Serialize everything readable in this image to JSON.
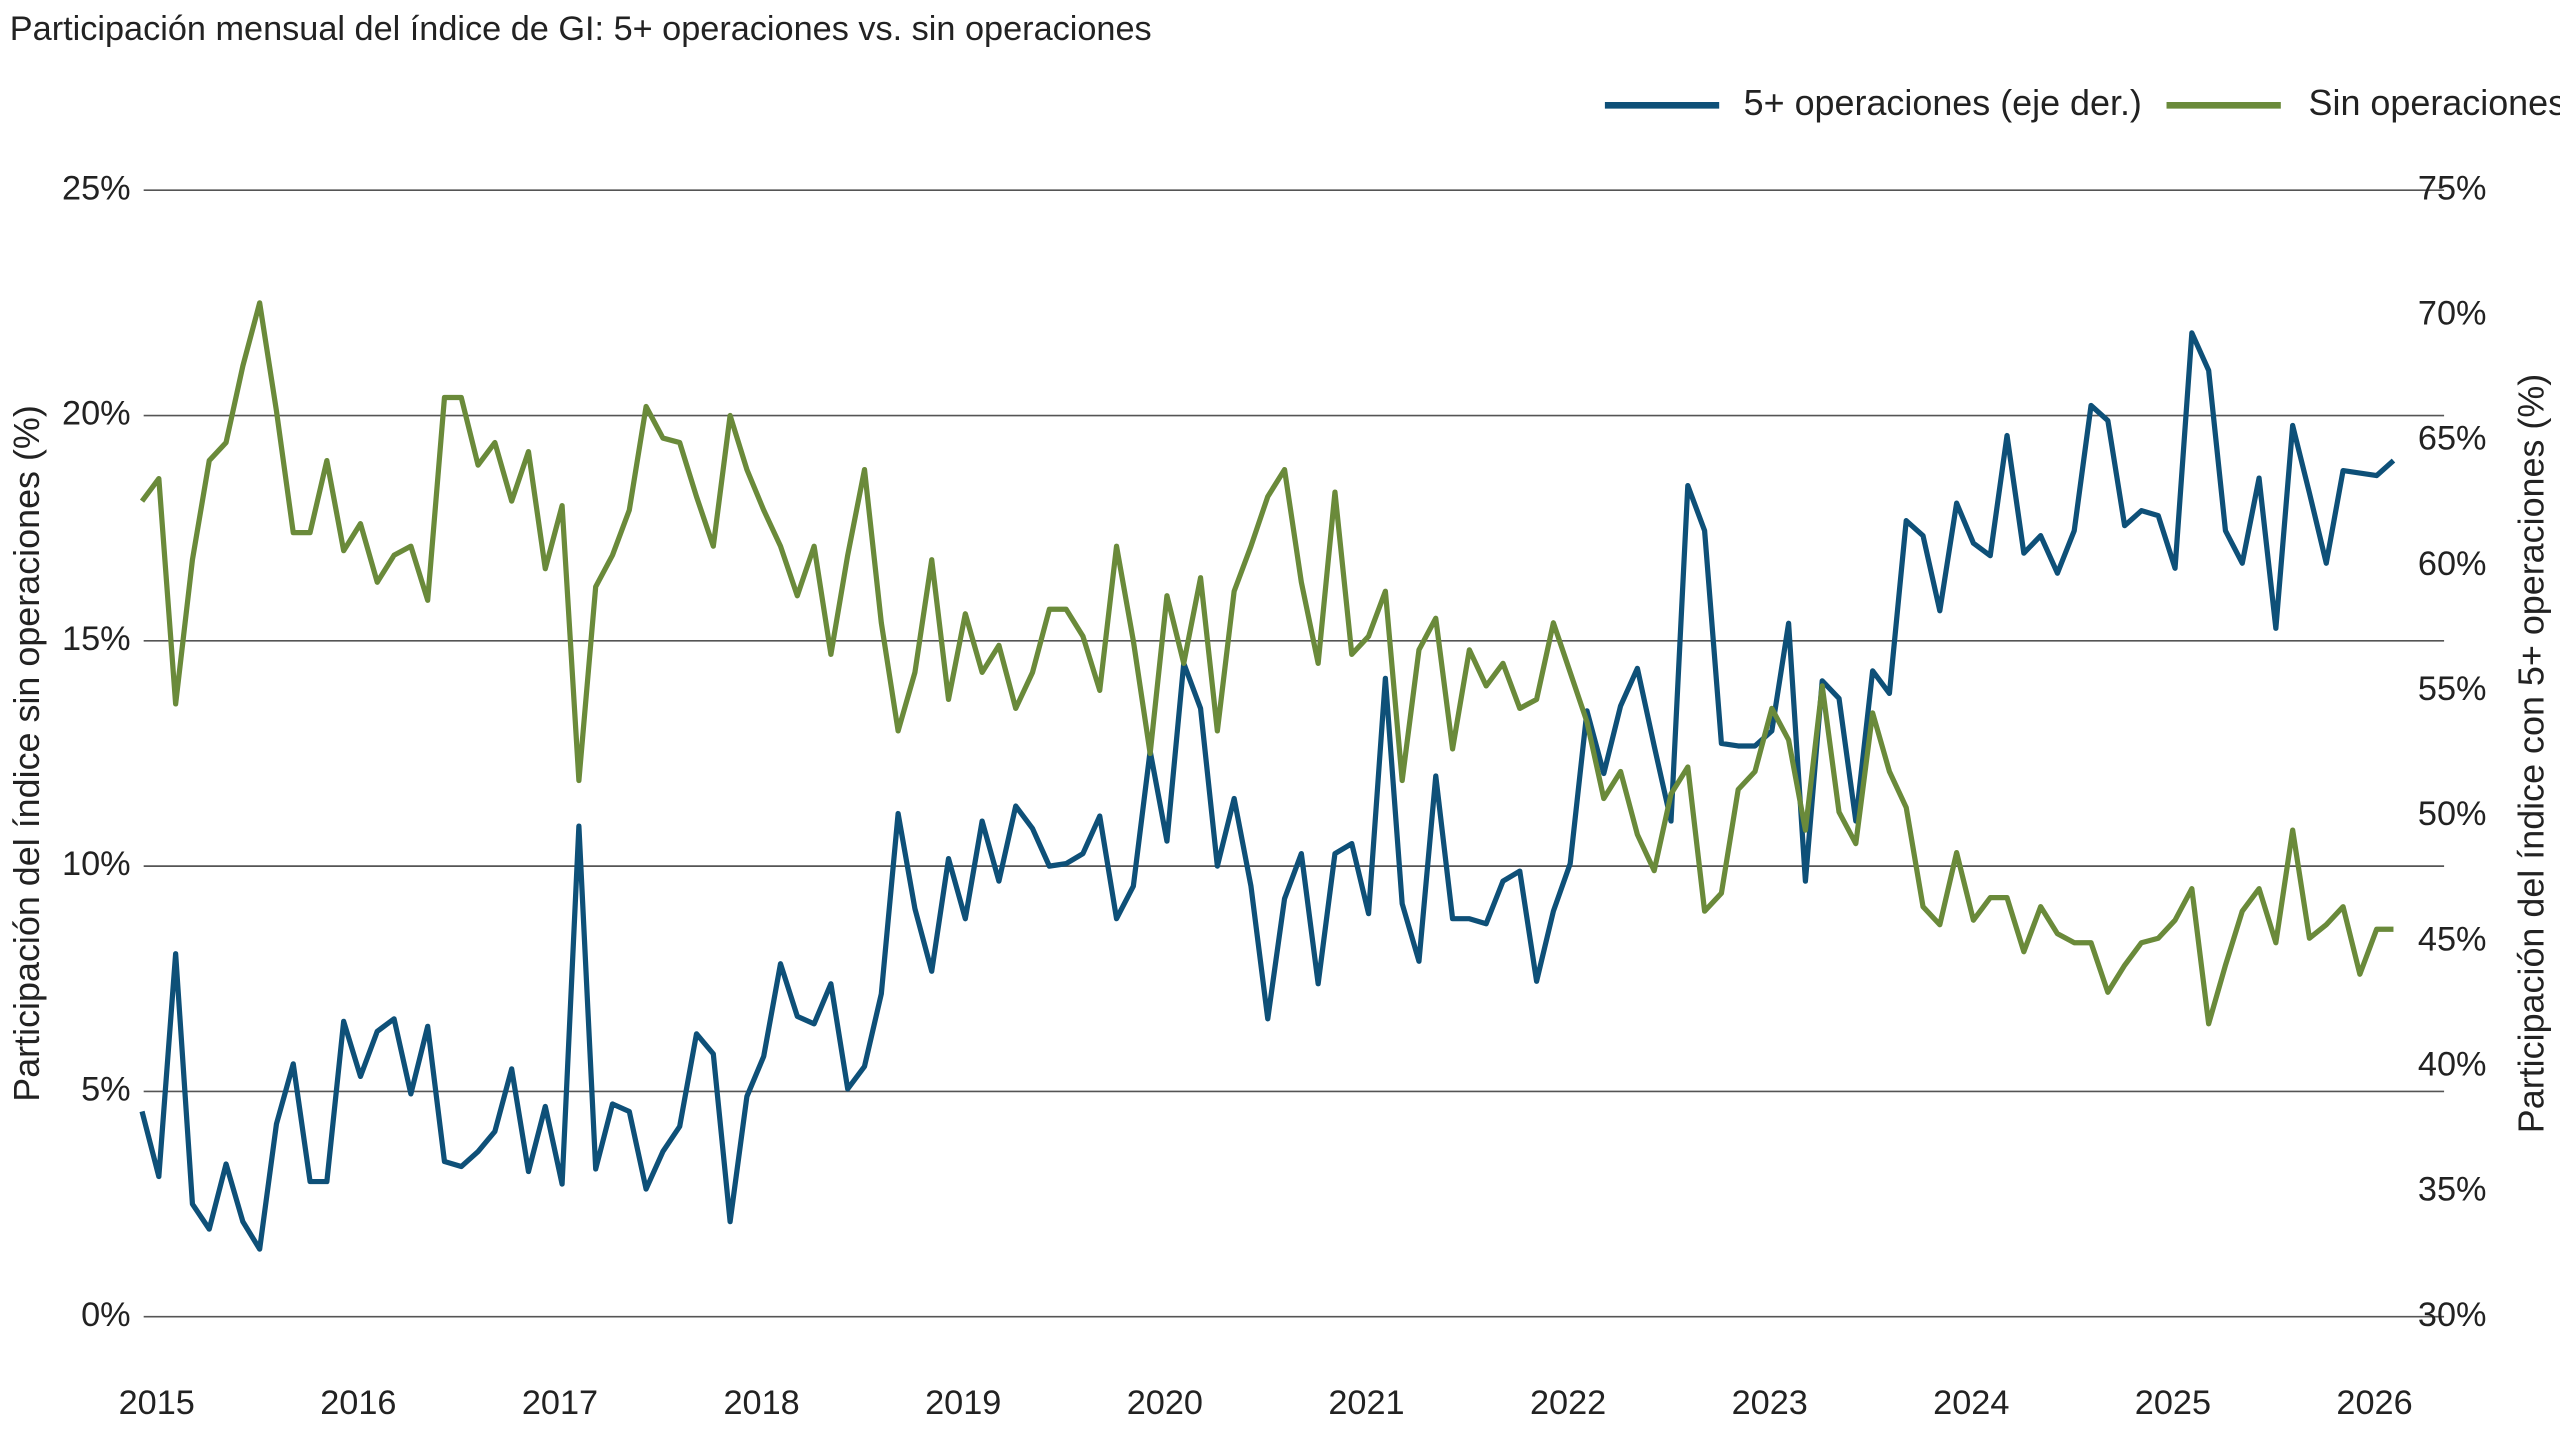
{
  "chart_data": {
    "type": "line",
    "title": "Participación mensual del índice de GI: 5+ operaciones vs. sin operaciones",
    "y_label": "Participación del índice sin operaciones (%)",
    "y2_label": "Participación del índice con 5+ operaciones (%)",
    "categories": [
      "2015",
      null,
      null,
      null,
      null,
      null,
      null,
      null,
      null,
      null,
      null,
      null,
      "2016",
      null,
      null,
      null,
      null,
      null,
      null,
      null,
      null,
      null,
      null,
      null,
      "2017",
      null,
      null,
      null,
      null,
      null,
      null,
      null,
      null,
      null,
      null,
      null,
      "2018",
      null,
      null,
      null,
      null,
      null,
      null,
      null,
      null,
      null,
      null,
      null,
      "2019",
      null,
      null,
      null,
      null,
      null,
      null,
      null,
      null,
      null,
      null,
      null,
      "2020",
      null,
      null,
      null,
      null,
      null,
      null,
      null,
      null,
      null,
      null,
      null,
      "2021",
      null,
      null,
      null,
      null,
      null,
      null,
      null,
      null,
      null,
      null,
      null,
      "2022",
      null,
      null,
      null,
      null,
      null,
      null,
      null,
      null,
      null,
      null,
      null,
      "2023",
      null,
      null,
      null,
      null,
      null,
      null,
      null,
      null,
      null,
      null,
      null,
      "2024",
      null,
      null,
      null,
      null,
      null,
      null,
      null,
      null,
      null,
      null,
      null,
      "2025",
      null,
      null,
      null,
      null,
      null,
      null,
      null,
      null,
      null,
      null,
      null,
      "2026",
      null,
      null
    ],
    "series": [
      {
        "name": "5+ operaciones (eje der.)",
        "color": "#0e5078",
        "axis": "y2",
        "values": [
          38.2,
          35.6,
          44.5,
          34.5,
          33.5,
          36.1,
          33.8,
          32.7,
          37.7,
          40.1,
          35.4,
          35.4,
          41.8,
          39.6,
          41.4,
          41.9,
          38.9,
          41.6,
          36.2,
          36.0,
          36.6,
          37.4,
          39.9,
          35.8,
          38.4,
          35.3,
          49.6,
          35.9,
          38.5,
          38.2,
          35.1,
          36.6,
          37.6,
          41.3,
          40.5,
          33.8,
          38.8,
          40.4,
          44.1,
          42.0,
          41.7,
          43.3,
          39.1,
          40.0,
          42.9,
          50.1,
          46.3,
          43.8,
          48.3,
          45.9,
          49.8,
          47.4,
          50.4,
          49.5,
          48.0,
          48.1,
          48.5,
          50.0,
          45.9,
          47.2,
          52.6,
          49.0,
          56.1,
          54.3,
          48.0,
          50.7,
          47.2,
          41.9,
          46.7,
          48.5,
          43.3,
          48.5,
          48.9,
          46.1,
          55.5,
          46.5,
          44.2,
          51.6,
          45.9,
          45.9,
          45.7,
          47.4,
          47.8,
          43.4,
          46.2,
          48.1,
          54.2,
          51.7,
          54.4,
          55.9,
          52.8,
          49.8,
          63.2,
          61.4,
          52.9,
          52.8,
          52.8,
          53.4,
          57.7,
          47.4,
          55.4,
          54.7,
          49.8,
          55.8,
          54.9,
          61.8,
          61.2,
          58.2,
          62.5,
          60.9,
          60.4,
          65.2,
          60.5,
          61.2,
          59.7,
          61.4,
          66.4,
          65.8,
          61.6,
          62.2,
          62.0,
          59.9,
          69.3,
          67.8,
          61.4,
          60.1,
          63.5,
          57.5,
          65.6,
          62.9,
          60.1,
          63.8,
          63.7,
          63.6,
          64.2
        ]
      },
      {
        "name": "Sin operaciones",
        "color": "#6a8a3a",
        "axis": "y",
        "values": [
          18.1,
          18.6,
          13.6,
          16.8,
          19.0,
          19.4,
          21.1,
          22.5,
          20.1,
          17.4,
          17.4,
          19.0,
          17.0,
          17.6,
          16.3,
          16.9,
          17.1,
          15.9,
          20.4,
          20.4,
          18.9,
          19.4,
          18.1,
          19.2,
          16.6,
          18.0,
          11.9,
          16.2,
          16.9,
          17.9,
          20.2,
          19.5,
          19.4,
          18.2,
          17.1,
          20.0,
          18.8,
          17.9,
          17.1,
          16.0,
          17.1,
          14.7,
          16.9,
          18.8,
          15.4,
          13.0,
          14.3,
          16.8,
          13.7,
          15.6,
          14.3,
          14.9,
          13.5,
          14.3,
          15.7,
          15.7,
          15.1,
          13.9,
          17.1,
          15.0,
          12.5,
          16.0,
          14.5,
          16.4,
          13.0,
          16.1,
          17.1,
          18.2,
          18.8,
          16.3,
          14.5,
          18.3,
          14.7,
          15.1,
          16.1,
          11.9,
          14.8,
          15.5,
          12.6,
          14.8,
          14.0,
          14.5,
          13.5,
          13.7,
          15.4,
          14.3,
          13.2,
          11.5,
          12.1,
          10.7,
          9.9,
          11.6,
          12.2,
          9.0,
          9.4,
          11.7,
          12.1,
          13.5,
          12.8,
          10.8,
          14.0,
          11.2,
          10.5,
          13.4,
          12.1,
          11.3,
          9.1,
          8.7,
          10.3,
          8.8,
          9.3,
          9.3,
          8.1,
          9.1,
          8.5,
          8.3,
          8.3,
          7.2,
          7.8,
          8.3,
          8.4,
          8.8,
          9.5,
          6.5,
          7.8,
          9.0,
          9.5,
          8.3,
          10.8,
          8.4,
          8.7,
          9.1,
          7.6,
          8.6,
          8.6
        ]
      }
    ],
    "ylim": [
      0,
      25
    ],
    "yticks": [
      {
        "value": 0,
        "label": "0%"
      },
      {
        "value": 5,
        "label": "5%"
      },
      {
        "value": 10,
        "label": "10%"
      },
      {
        "value": 15,
        "label": "15%"
      },
      {
        "value": 20,
        "label": "20%"
      },
      {
        "value": 25,
        "label": "25%"
      }
    ],
    "y2lim": [
      30,
      75
    ],
    "y2ticks": [
      {
        "value": 30,
        "label": "30%"
      },
      {
        "value": 35,
        "label": "35%"
      },
      {
        "value": 40,
        "label": "40%"
      },
      {
        "value": 45,
        "label": "45%"
      },
      {
        "value": 50,
        "label": "50%"
      },
      {
        "value": 55,
        "label": "55%"
      },
      {
        "value": 60,
        "label": "60%"
      },
      {
        "value": 65,
        "label": "65%"
      },
      {
        "value": 70,
        "label": "70%"
      },
      {
        "value": 75,
        "label": "75%"
      }
    ],
    "grid": true,
    "legend": "top-right"
  }
}
